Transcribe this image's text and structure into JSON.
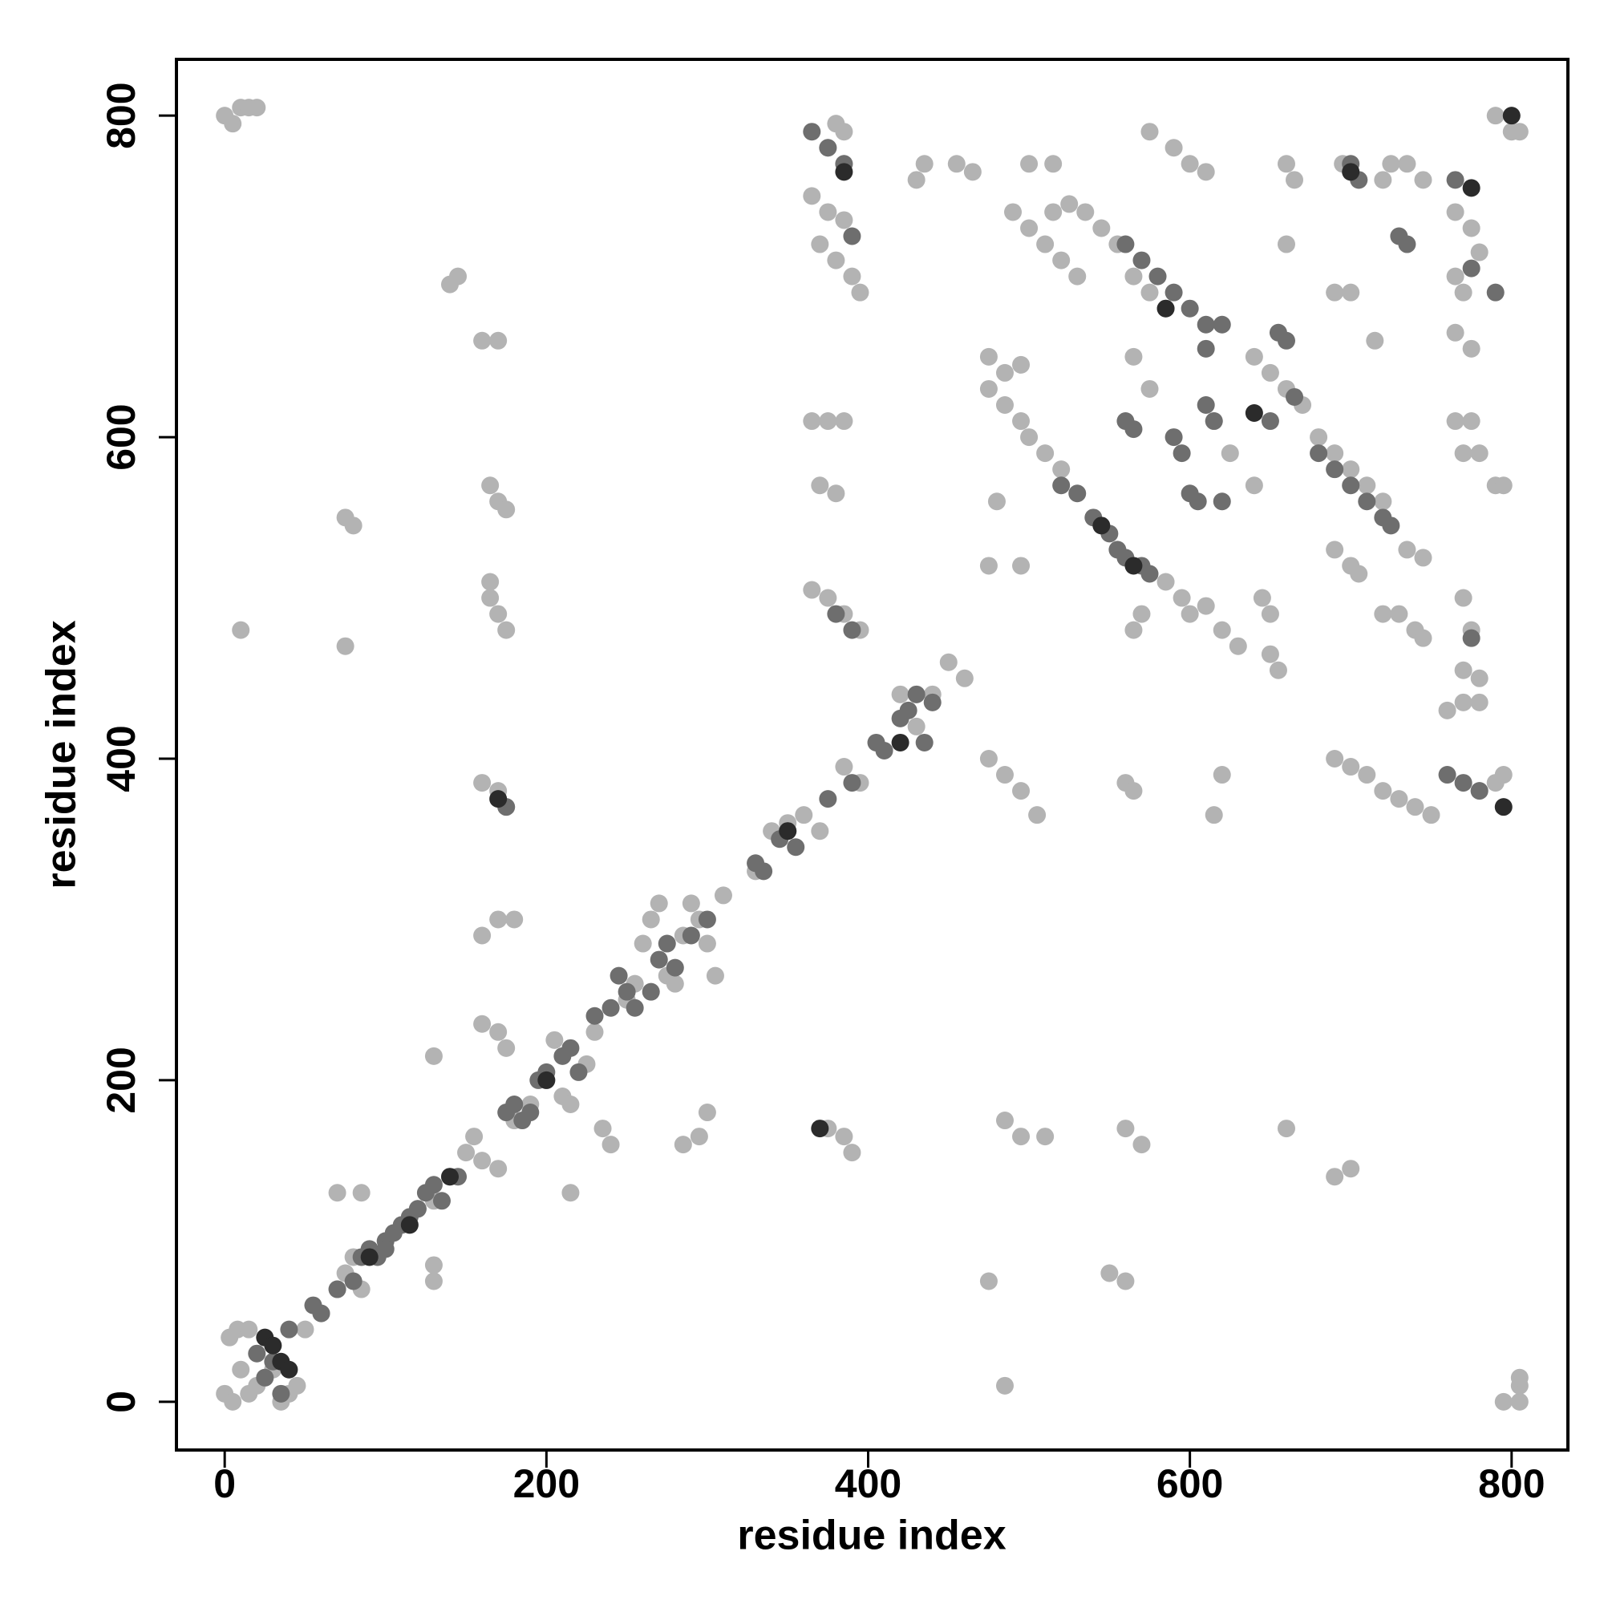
{
  "chart_data": {
    "type": "scatter",
    "xlabel": "residue index",
    "ylabel": "residue index",
    "xlim": [
      -30,
      835
    ],
    "ylim": [
      -30,
      835
    ],
    "xticks": [
      0,
      200,
      400,
      600,
      800
    ],
    "yticks": [
      0,
      200,
      400,
      600,
      800
    ],
    "grid": false,
    "series": [
      {
        "color": "#b3b3b3",
        "x": [
          0,
          5,
          3,
          8,
          15,
          10,
          20,
          15,
          25,
          30,
          40,
          45,
          35,
          50,
          60,
          70,
          75,
          80,
          85,
          90,
          100,
          110,
          120,
          130,
          140,
          150,
          155,
          160,
          170,
          180,
          190,
          200,
          205,
          210,
          215,
          225,
          230,
          235,
          240,
          250,
          255,
          260,
          265,
          270,
          275,
          280,
          285,
          290,
          295,
          300,
          305,
          310,
          330,
          340,
          350,
          360,
          370,
          385,
          395,
          420,
          430,
          440,
          450,
          460,
          10,
          75,
          80,
          75,
          70,
          85,
          130,
          130,
          130,
          140,
          145,
          165,
          170,
          175,
          165,
          170,
          175,
          165,
          160,
          170,
          175,
          160,
          170,
          180,
          160,
          170,
          175,
          160,
          170,
          285,
          295,
          300,
          215,
          365,
          375,
          385,
          370,
          380,
          365,
          375,
          385,
          370,
          380,
          390,
          395,
          380,
          385,
          375,
          385,
          375,
          385,
          390,
          365,
          375,
          385,
          395,
          430,
          435,
          455,
          465,
          475,
          485,
          495,
          475,
          485,
          495,
          500,
          510,
          520,
          475,
          485,
          495,
          505,
          480,
          495,
          475,
          485,
          495,
          510,
          475,
          485,
          490,
          500,
          510,
          520,
          530,
          515,
          525,
          535,
          545,
          555,
          565,
          575,
          585,
          500,
          515,
          560,
          570,
          550,
          560,
          565,
          570,
          560,
          565,
          565,
          575,
          575,
          590,
          600,
          610,
          585,
          595,
          600,
          610,
          620,
          630,
          640,
          650,
          660,
          670,
          640,
          645,
          650,
          650,
          655,
          660,
          660,
          665,
          660,
          620,
          615,
          615,
          625,
          680,
          690,
          700,
          710,
          720,
          690,
          700,
          705,
          690,
          700,
          710,
          720,
          730,
          740,
          750,
          690,
          700,
          695,
          705,
          720,
          725,
          715,
          690,
          700,
          735,
          745,
          735,
          745,
          720,
          730,
          740,
          745,
          765,
          775,
          780,
          765,
          770,
          765,
          775,
          765,
          775,
          770,
          780,
          770,
          775,
          770,
          780,
          760,
          770,
          780,
          780,
          790,
          795,
          790,
          795,
          790,
          800,
          805,
          795,
          805,
          805,
          805,
          0,
          5,
          10,
          15,
          20
        ],
        "y": [
          5,
          0,
          40,
          45,
          45,
          20,
          10,
          5,
          15,
          20,
          5,
          10,
          0,
          45,
          55,
          70,
          80,
          90,
          70,
          95,
          100,
          110,
          120,
          125,
          140,
          155,
          165,
          150,
          145,
          175,
          185,
          200,
          225,
          190,
          185,
          210,
          230,
          170,
          160,
          250,
          260,
          285,
          300,
          310,
          265,
          260,
          290,
          310,
          300,
          285,
          265,
          315,
          330,
          355,
          360,
          365,
          355,
          395,
          385,
          440,
          420,
          440,
          460,
          450,
          480,
          550,
          545,
          470,
          130,
          130,
          215,
          75,
          85,
          695,
          700,
          570,
          560,
          555,
          500,
          490,
          480,
          510,
          385,
          380,
          370,
          290,
          300,
          300,
          235,
          230,
          220,
          660,
          660,
          160,
          165,
          180,
          130,
          610,
          610,
          610,
          570,
          565,
          750,
          740,
          735,
          720,
          710,
          700,
          690,
          795,
          790,
          780,
          770,
          170,
          165,
          155,
          505,
          500,
          490,
          480,
          760,
          770,
          770,
          765,
          650,
          640,
          645,
          630,
          620,
          610,
          600,
          590,
          580,
          400,
          390,
          380,
          365,
          560,
          520,
          520,
          175,
          165,
          165,
          75,
          10,
          740,
          730,
          720,
          710,
          700,
          740,
          745,
          740,
          730,
          720,
          700,
          690,
          680,
          770,
          770,
          170,
          160,
          80,
          75,
          480,
          490,
          385,
          380,
          650,
          630,
          790,
          780,
          770,
          765,
          510,
          500,
          490,
          495,
          480,
          470,
          650,
          640,
          630,
          620,
          570,
          500,
          490,
          465,
          455,
          720,
          770,
          760,
          170,
          390,
          365,
          610,
          590,
          600,
          590,
          580,
          570,
          560,
          530,
          520,
          515,
          400,
          395,
          390,
          380,
          375,
          370,
          365,
          690,
          690,
          770,
          760,
          760,
          770,
          660,
          140,
          145,
          770,
          760,
          530,
          525,
          490,
          490,
          480,
          475,
          740,
          730,
          715,
          700,
          690,
          665,
          655,
          610,
          610,
          590,
          590,
          500,
          480,
          455,
          450,
          430,
          435,
          435,
          380,
          385,
          390,
          570,
          570,
          800,
          790,
          790,
          0,
          0,
          10,
          15,
          800,
          795,
          805,
          805,
          805
        ]
      },
      {
        "color": "#6e6e6e",
        "x": [
          40,
          55,
          60,
          70,
          80,
          85,
          90,
          95,
          100,
          105,
          110,
          115,
          120,
          125,
          130,
          135,
          145,
          175,
          180,
          185,
          190,
          195,
          200,
          210,
          215,
          220,
          230,
          240,
          245,
          250,
          255,
          265,
          270,
          275,
          280,
          290,
          300,
          330,
          335,
          345,
          350,
          355,
          405,
          410,
          420,
          425,
          430,
          435,
          440,
          365,
          375,
          385,
          390,
          560,
          565,
          590,
          595,
          600,
          610,
          615,
          605,
          620,
          610,
          620,
          650,
          655,
          660,
          665,
          560,
          570,
          580,
          590,
          600,
          610,
          520,
          530,
          540,
          550,
          555,
          560,
          570,
          575,
          680,
          690,
          700,
          710,
          720,
          725,
          700,
          705,
          730,
          735,
          765,
          775,
          790,
          775,
          760,
          770,
          780,
          380,
          390,
          375,
          390,
          175,
          20,
          30,
          25,
          35,
          100
        ],
        "y": [
          45,
          60,
          55,
          70,
          75,
          90,
          95,
          90,
          100,
          105,
          110,
          115,
          120,
          130,
          135,
          125,
          140,
          180,
          185,
          175,
          180,
          200,
          205,
          215,
          220,
          205,
          240,
          245,
          265,
          255,
          245,
          255,
          275,
          285,
          270,
          290,
          300,
          335,
          330,
          350,
          355,
          345,
          410,
          405,
          425,
          430,
          440,
          410,
          435,
          790,
          780,
          770,
          725,
          610,
          605,
          600,
          590,
          565,
          620,
          610,
          560,
          560,
          655,
          670,
          610,
          665,
          660,
          625,
          720,
          710,
          700,
          690,
          680,
          670,
          570,
          565,
          550,
          540,
          530,
          525,
          520,
          515,
          590,
          580,
          570,
          560,
          550,
          545,
          770,
          760,
          725,
          720,
          760,
          705,
          690,
          475,
          390,
          385,
          380,
          490,
          480,
          375,
          385,
          370,
          30,
          25,
          15,
          5,
          95
        ]
      },
      {
        "color": "#2b2b2b",
        "x": [
          25,
          30,
          35,
          40,
          170,
          370,
          115,
          140,
          385,
          350,
          420,
          545,
          565,
          775,
          795,
          800,
          700,
          585,
          640,
          200,
          90
        ],
        "y": [
          40,
          35,
          25,
          20,
          375,
          170,
          110,
          140,
          765,
          355,
          410,
          545,
          520,
          755,
          370,
          800,
          765,
          680,
          615,
          200,
          90
        ]
      }
    ]
  }
}
